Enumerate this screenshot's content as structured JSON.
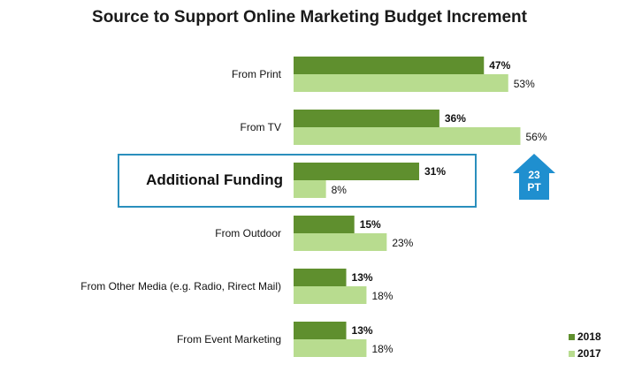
{
  "chart_data": {
    "type": "bar",
    "orientation": "horizontal",
    "title": "Source to Support Online Marketing Budget Increment",
    "categories": [
      "From Print",
      "From TV",
      "Additional Funding",
      "From Outdoor",
      "From Other Media (e.g. Radio, Rirect Mail)",
      "From Event Marketing"
    ],
    "series": [
      {
        "name": "2018",
        "values": [
          47,
          36,
          31,
          15,
          13,
          13
        ],
        "color": "#5f8f2e"
      },
      {
        "name": "2017",
        "values": [
          53,
          56,
          8,
          23,
          18,
          18
        ],
        "color": "#b8dc8f"
      }
    ],
    "value_labels": {
      "2018": [
        "47%",
        "36%",
        "31%",
        "15%",
        "13%",
        "13%"
      ],
      "2017": [
        "53%",
        "56%",
        "8%",
        "23%",
        "18%",
        "18%"
      ]
    },
    "unit": "%",
    "xlim": [
      0,
      100
    ],
    "grid": false,
    "legend_position": "bottom-right",
    "highlight": {
      "category": "Additional Funding",
      "box_color": "#2a8fbd",
      "badge_text": [
        "23",
        "PT"
      ],
      "badge_color": "#1f8fcf"
    }
  }
}
